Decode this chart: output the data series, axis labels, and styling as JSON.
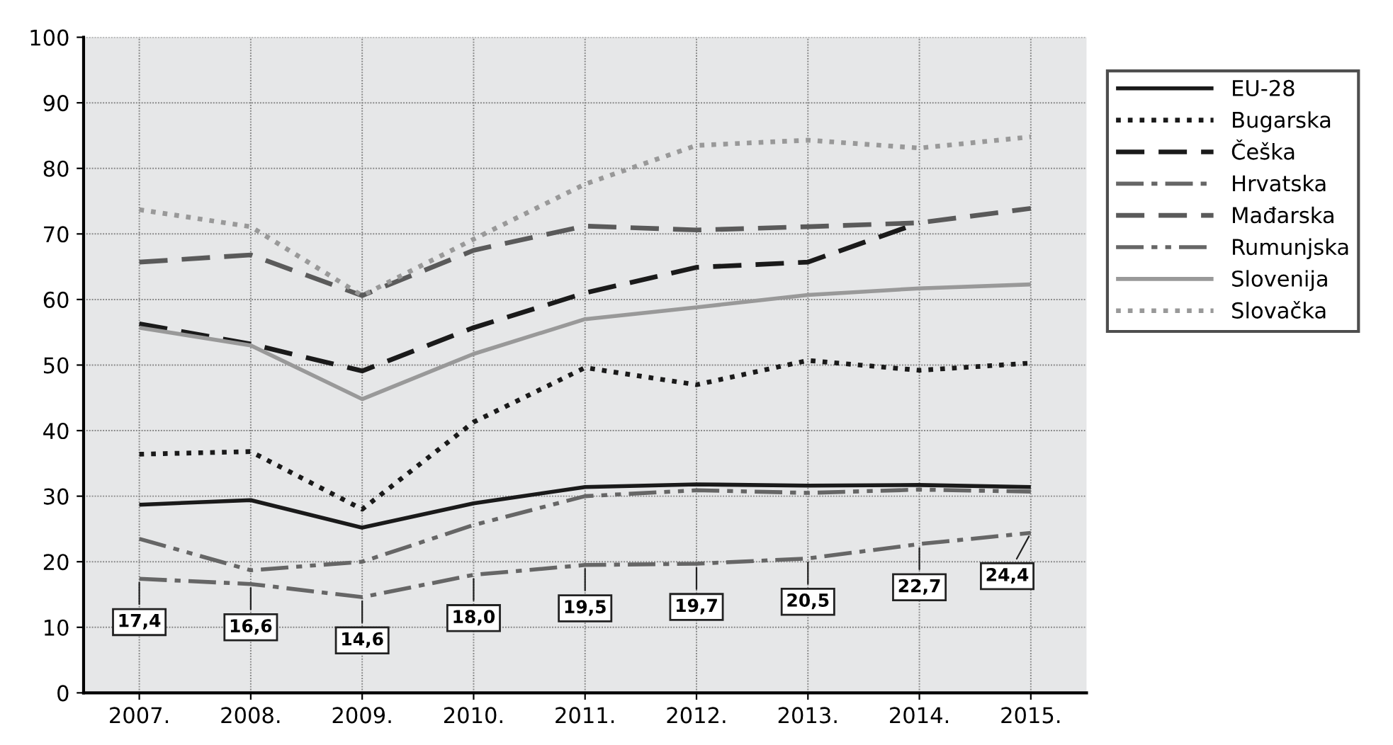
{
  "chart_data": {
    "type": "line",
    "categories": [
      "2007.",
      "2008.",
      "2009.",
      "2010.",
      "2011.",
      "2012.",
      "2013.",
      "2014.",
      "2015."
    ],
    "ylim": [
      0,
      100
    ],
    "yticks": [
      0,
      10,
      20,
      30,
      40,
      50,
      60,
      70,
      80,
      90,
      100
    ],
    "grid": true,
    "legend": "right",
    "marker": "none",
    "series": [
      {
        "name": "EU-28",
        "color": "#1a1a1a",
        "line_style": "solid",
        "values": [
          28.7,
          29.4,
          25.2,
          28.9,
          31.4,
          31.8,
          31.6,
          31.7,
          31.4
        ]
      },
      {
        "name": "Bugarska",
        "color": "#1a1a1a",
        "line_style": "dotted",
        "values": [
          36.4,
          36.8,
          28.0,
          41.3,
          49.6,
          47.0,
          50.7,
          49.2,
          50.3
        ]
      },
      {
        "name": "Češka",
        "color": "#1a1a1a",
        "line_style": "dashed",
        "values": [
          56.3,
          53.2,
          49.1,
          55.7,
          61.0,
          64.9,
          65.7,
          71.7,
          null
        ]
      },
      {
        "name": "Hrvatska",
        "color": "#666666",
        "line_style": "dashdot",
        "values": [
          17.4,
          16.6,
          14.6,
          18.0,
          19.5,
          19.7,
          20.5,
          22.7,
          24.4
        ],
        "value_labels": [
          "17,4",
          "16,6",
          "14,6",
          "18,0",
          "19,5",
          "19,7",
          "20,5",
          "22,7",
          "24,4"
        ]
      },
      {
        "name": "Mađarska",
        "color": "#5a5a5a",
        "line_style": "dashed",
        "values": [
          65.7,
          66.8,
          60.6,
          67.5,
          71.2,
          70.6,
          71.1,
          71.7,
          73.9
        ]
      },
      {
        "name": "Rumunjska",
        "color": "#666666",
        "line_style": "dashdotdot",
        "values": [
          23.5,
          18.7,
          20.0,
          25.6,
          30.0,
          30.9,
          30.5,
          31.0,
          30.7
        ]
      },
      {
        "name": "Slovenija",
        "color": "#999999",
        "line_style": "solid",
        "values": [
          55.7,
          53.0,
          44.8,
          51.7,
          57.0,
          58.8,
          60.7,
          61.7,
          62.3
        ]
      },
      {
        "name": "Slovačka",
        "color": "#999999",
        "line_style": "dotted",
        "values": [
          73.7,
          71.1,
          60.6,
          69.2,
          77.6,
          83.5,
          84.3,
          83.1,
          84.8
        ]
      }
    ]
  }
}
